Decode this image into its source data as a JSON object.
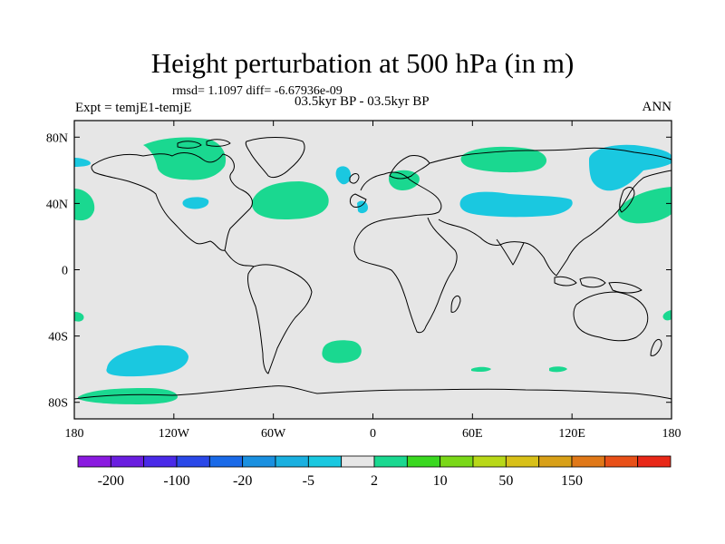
{
  "title": "Height perturbation at 500 hPa (in m)",
  "stats": "rmsd= 1.1097 diff= -6.67936e-09",
  "expt": "Expt = temjE1-temjE",
  "period": "03.5kyr BP - 03.5kyr BP",
  "season": "ANN",
  "lat_labels": [
    "80N",
    "40N",
    "0",
    "40S",
    "80S"
  ],
  "lat_values": [
    80,
    40,
    0,
    -40,
    -80
  ],
  "lon_labels": [
    "180",
    "120W",
    "60W",
    "0",
    "60E",
    "120E",
    "180"
  ],
  "lon_values": [
    -180,
    -120,
    -60,
    0,
    60,
    120,
    180
  ],
  "lon_range": [
    -180,
    180
  ],
  "lat_range": [
    -90,
    90
  ],
  "colorbar": {
    "labels": [
      "-200",
      "-100",
      "-20",
      "-5",
      "2",
      "10",
      "50",
      "150"
    ],
    "colors": [
      "#8a1ae0",
      "#6a1ee0",
      "#4a2ae8",
      "#2a48e8",
      "#1a6ae8",
      "#1a90e0",
      "#1ab0e0",
      "#1ac8e0",
      "#e6e6e6",
      "#1ad890",
      "#3ad820",
      "#7ad818",
      "#b8d818",
      "#d8c018",
      "#d8a018",
      "#e07818",
      "#e85018",
      "#e82818"
    ]
  },
  "anomaly_colors": {
    "positive": "#1ad890",
    "negative": "#1ac8e0",
    "background": "#e6e6e6"
  }
}
